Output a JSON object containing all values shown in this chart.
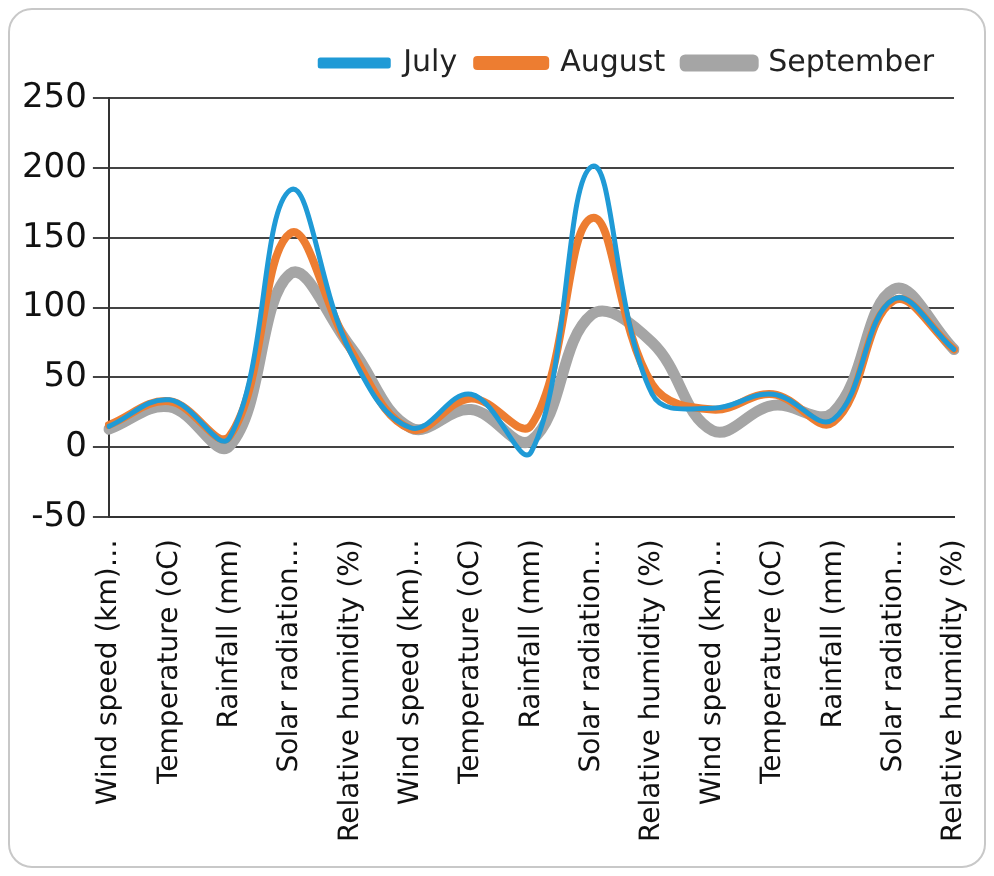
{
  "chart_data": {
    "type": "line",
    "categories": [
      "Wind speed (km)…",
      "Temperature (oC)",
      "Rainfall (mm)",
      "Solar radiation…",
      "Relative humidity (%)",
      "Wind speed (km)…",
      "Temperature (oC)",
      "Rainfall (mm)",
      "Solar radiation…",
      "Relative humidity (%)",
      "Wind speed (km)…",
      "Temperature (oC)",
      "Rainfall (mm)",
      "Solar radiation…",
      "Relative humidity (%)"
    ],
    "series": [
      {
        "name": "July",
        "color": "#1f9ad6",
        "values": [
          15,
          34,
          7,
          184,
          68,
          14,
          38,
          -3,
          201,
          38,
          28,
          38,
          20,
          106,
          70
        ]
      },
      {
        "name": "August",
        "color": "#ed7d31",
        "values": [
          16,
          33,
          8,
          153,
          70,
          13,
          35,
          16,
          164,
          45,
          27,
          38,
          18,
          105,
          70
        ]
      },
      {
        "name": "September",
        "color": "#a5a5a5",
        "values": [
          13,
          29,
          1,
          124,
          72,
          14,
          27,
          5,
          95,
          75,
          12,
          30,
          25,
          113,
          70
        ]
      }
    ],
    "ylim": [
      -50,
      250
    ],
    "yticks": [
      -50,
      0,
      50,
      100,
      150,
      200,
      250
    ],
    "grid": "y",
    "legend": "top right",
    "marker": "none",
    "line_style": "solid"
  }
}
